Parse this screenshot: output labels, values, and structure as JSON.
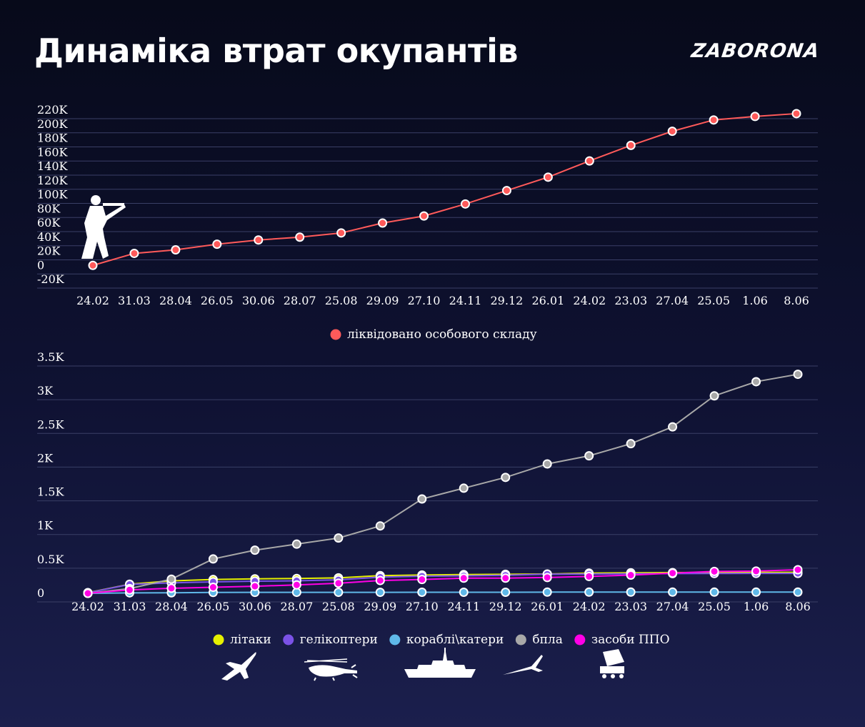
{
  "header": {
    "title": "Динаміка втрат окупантів",
    "brand": "ZABORONA"
  },
  "colors": {
    "personnel": "#ff5a5a",
    "aircraft": "#e6f000",
    "helicopters": "#7b52e6",
    "ships": "#5fb8e8",
    "uav": "#a8a8a8",
    "air_defense": "#ff00e6",
    "grid": "#3a3f66"
  },
  "chart_data": [
    {
      "type": "line",
      "categories": [
        "24.02",
        "31.03",
        "28.04",
        "26.05",
        "30.06",
        "28.07",
        "25.08",
        "29.09",
        "27.10",
        "24.11",
        "29.12",
        "26.01",
        "24.02",
        "23.03",
        "27.04",
        "25.05",
        "1.06",
        "8.06"
      ],
      "y_ticks": [
        "220K",
        "200K",
        "180K",
        "160K",
        "140K",
        "120K",
        "100K",
        "80K",
        "60K",
        "40K",
        "20K",
        "0",
        "-20K"
      ],
      "ylim": [
        -20000,
        220000
      ],
      "grid": true,
      "legend_position": "bottom-center",
      "icon": "soldier-icon",
      "series": [
        {
          "name": "ліквідовано особового складу",
          "color": "#ff5a5a",
          "values": [
            0,
            17000,
            22000,
            30000,
            36000,
            40000,
            46000,
            60000,
            70000,
            87000,
            106000,
            125000,
            148000,
            170000,
            190000,
            206000,
            211000,
            215000
          ]
        }
      ]
    },
    {
      "type": "line",
      "categories": [
        "24.02",
        "31.03",
        "28.04",
        "26.05",
        "30.06",
        "28.07",
        "25.08",
        "29.09",
        "27.10",
        "24.11",
        "29.12",
        "26.01",
        "24.02",
        "23.03",
        "27.04",
        "25.05",
        "1.06",
        "8.06"
      ],
      "y_ticks": [
        "3.5K",
        "3K",
        "2.5K",
        "2K",
        "1.5K",
        "1K",
        "0.5K",
        "0"
      ],
      "ylim": [
        0,
        3500
      ],
      "grid": true,
      "legend_position": "bottom-center",
      "series": [
        {
          "name": "літаки",
          "color": "#e6f000",
          "icon": "plane-icon",
          "values": [
            10,
            135,
            185,
            205,
            215,
            220,
            230,
            262,
            272,
            278,
            283,
            287,
            300,
            305,
            308,
            310,
            311,
            312
          ]
        },
        {
          "name": "гелікоптери",
          "color": "#7b52e6",
          "icon": "helicopter-icon",
          "values": [
            7,
            132,
            155,
            170,
            180,
            185,
            200,
            240,
            255,
            260,
            268,
            284,
            287,
            290,
            293,
            294,
            295,
            296
          ]
        },
        {
          "name": "кораблі\\катери",
          "color": "#5fb8e8",
          "icon": "warship-icon",
          "values": [
            0,
            7,
            8,
            13,
            14,
            15,
            15,
            15,
            16,
            16,
            16,
            18,
            18,
            18,
            18,
            18,
            18,
            18
          ]
        },
        {
          "name": "бпла",
          "color": "#a8a8a8",
          "icon": "drone-icon",
          "values": [
            0,
            70,
            210,
            510,
            640,
            730,
            820,
            1000,
            1400,
            1560,
            1720,
            1920,
            2040,
            2220,
            2470,
            2930,
            3140,
            3250
          ]
        },
        {
          "name": "засоби ППО",
          "color": "#ff00e6",
          "icon": "air-defense-icon",
          "values": [
            0,
            50,
            75,
            90,
            105,
            125,
            150,
            190,
            205,
            225,
            225,
            235,
            250,
            270,
            300,
            325,
            330,
            350
          ]
        }
      ]
    }
  ]
}
